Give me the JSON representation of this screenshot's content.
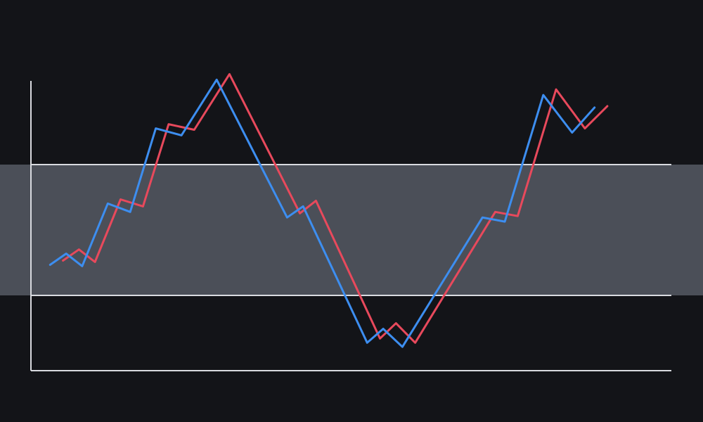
{
  "colors": {
    "background": "#131418",
    "band": "#4b4f58",
    "axis": "#d9dbe0",
    "series_blue": "#3d8ef0",
    "series_red": "#e8495c"
  },
  "chart_data": {
    "type": "line",
    "title": "",
    "xlabel": "",
    "ylabel": "",
    "xlim": [
      0,
      100
    ],
    "ylim": [
      0,
      100
    ],
    "grid": false,
    "band": {
      "from": 25,
      "to": 72,
      "label": ""
    },
    "reference_lines": [
      25,
      72
    ],
    "series": [
      {
        "color_key": "series_blue",
        "points": [
          [
            3,
            36
          ],
          [
            5.5,
            40
          ],
          [
            8,
            35.5
          ],
          [
            12,
            58
          ],
          [
            15.5,
            55
          ],
          [
            19.5,
            85
          ],
          [
            23.5,
            82.5
          ],
          [
            29,
            102.5
          ],
          [
            40,
            53
          ],
          [
            42.5,
            57
          ],
          [
            52.5,
            8
          ],
          [
            55,
            13
          ],
          [
            58,
            6.5
          ],
          [
            70.5,
            53
          ],
          [
            74,
            51.5
          ],
          [
            80,
            97
          ],
          [
            84.5,
            83.5
          ],
          [
            88,
            92.5
          ]
        ]
      },
      {
        "color_key": "series_red",
        "points": [
          [
            5,
            37.5
          ],
          [
            7.5,
            41.5
          ],
          [
            10,
            37
          ],
          [
            14,
            59.5
          ],
          [
            17.5,
            57
          ],
          [
            21.5,
            86.5
          ],
          [
            25.5,
            84.5
          ],
          [
            31,
            104.5
          ],
          [
            42,
            54.5
          ],
          [
            44.5,
            59
          ],
          [
            54.5,
            9.5
          ],
          [
            57,
            15
          ],
          [
            60,
            8
          ],
          [
            72.5,
            55
          ],
          [
            76,
            53.5
          ],
          [
            82,
            99
          ],
          [
            86.5,
            85
          ],
          [
            90,
            93
          ]
        ]
      }
    ]
  }
}
